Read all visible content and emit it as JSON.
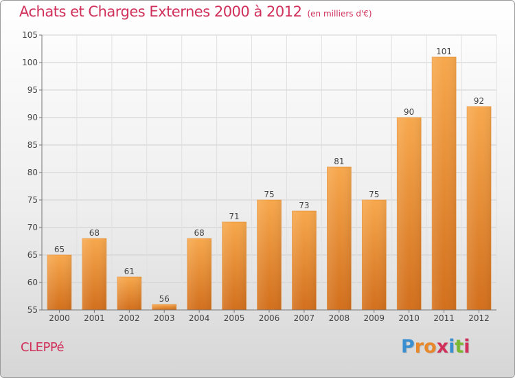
{
  "title": "Achats et Charges Externes 2000 à 2012",
  "unit_note": "(en milliers d'€)",
  "commune": "CLEPPé",
  "logo": {
    "text": "Proxiti",
    "colors": [
      "#3a8fd1",
      "#e8882a",
      "#e8882a",
      "#d0305a",
      "#3a8fd1",
      "#7ab833",
      "#d0305a"
    ]
  },
  "colors": {
    "accent": "#d0305a",
    "bar_light": "#f7a84d",
    "bar_dark": "#d26f1c"
  },
  "chart_data": {
    "type": "bar",
    "title": "Achats et Charges Externes 2000 à 2012",
    "subtitle": "(en milliers d'€)",
    "categories": [
      "2000",
      "2001",
      "2002",
      "2003",
      "2004",
      "2005",
      "2006",
      "2007",
      "2008",
      "2009",
      "2010",
      "2011",
      "2012"
    ],
    "values": [
      65,
      68,
      61,
      56,
      68,
      71,
      75,
      73,
      81,
      75,
      90,
      101,
      92
    ],
    "ylim": [
      55,
      105
    ],
    "yticks": [
      55,
      60,
      65,
      70,
      75,
      80,
      85,
      90,
      95,
      100,
      105
    ],
    "grid": true,
    "xlabel": "",
    "ylabel": ""
  }
}
